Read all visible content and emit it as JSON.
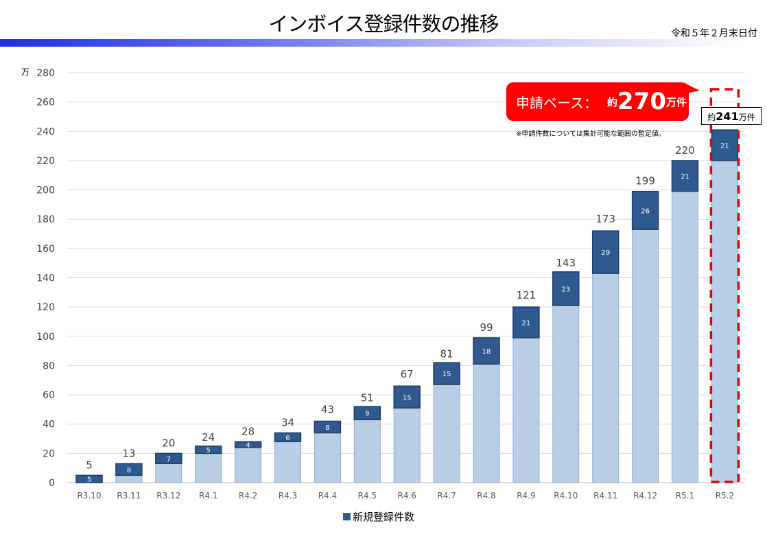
{
  "header": {
    "title": "インボイス登録件数の推移",
    "date": "令和５年２月末日付"
  },
  "callout": {
    "label": "申請ベース：",
    "prefix": "約",
    "value": "270",
    "unit": "万件",
    "note": "※申請件数については集計可能な範囲の暫定値。"
  },
  "highlight": {
    "prefix": "約",
    "value": "241",
    "unit": "万件"
  },
  "colors": {
    "base": "#b9cde4",
    "new": "#2f5a8f",
    "highlight": "#e00000",
    "callout": "#ff0000"
  },
  "chart_data": {
    "type": "bar",
    "stacked": true,
    "ylabel": "万",
    "ylim": [
      0,
      280
    ],
    "yticks": [
      0,
      20,
      40,
      60,
      80,
      100,
      120,
      140,
      160,
      180,
      200,
      220,
      240,
      260,
      280
    ],
    "grid": true,
    "legend_position": "bottom",
    "categories": [
      "R3.10",
      "R3.11",
      "R3.12",
      "R4.1",
      "R4.2",
      "R4.3",
      "R4.4",
      "R4.5",
      "R4.6",
      "R4.7",
      "R4.8",
      "R4.9",
      "R4.10",
      "R4.11",
      "R4.12",
      "R5.1",
      "R5.2"
    ],
    "totals": [
      5,
      13,
      20,
      24,
      28,
      34,
      43,
      51,
      67,
      81,
      99,
      121,
      143,
      173,
      199,
      220,
      241
    ],
    "series": [
      {
        "values": [
          0,
          5,
          13,
          20,
          24,
          28,
          34,
          43,
          51,
          67,
          81,
          99,
          121,
          143,
          173,
          199,
          220
        ]
      },
      {
        "name": "新規登録件数",
        "values": [
          5,
          8,
          7,
          5,
          4,
          6,
          8,
          9,
          15,
          15,
          18,
          21,
          23,
          29,
          26,
          21,
          21
        ]
      }
    ]
  }
}
